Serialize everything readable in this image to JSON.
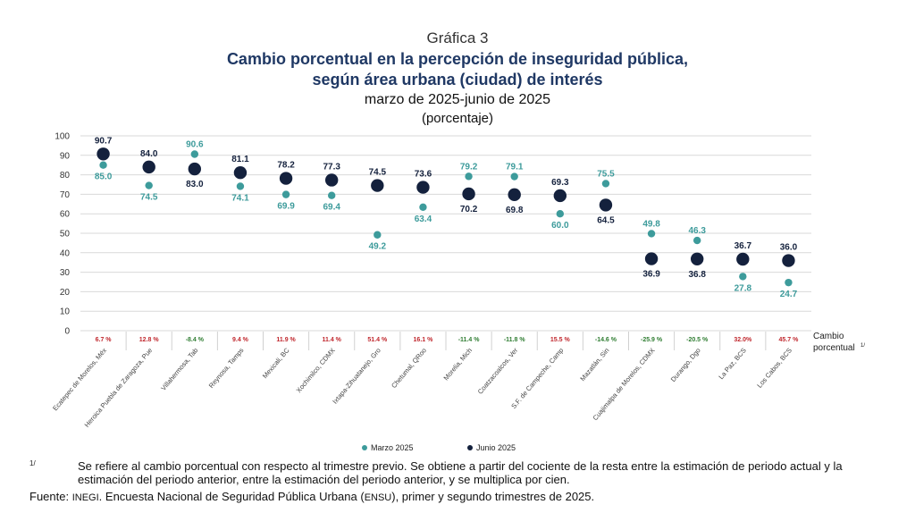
{
  "header": {
    "label": "Gráfica 3",
    "title_line1": "Cambio porcentual en la percepción de inseguridad pública,",
    "title_line2": "según área urbana (ciudad) de interés",
    "subtitle": "marzo de 2025-junio de 2025",
    "unit": "(porcentaje)"
  },
  "chart_data": {
    "type": "scatter",
    "ylim": [
      0,
      100
    ],
    "yticks": [
      0,
      10,
      20,
      30,
      40,
      50,
      60,
      70,
      80,
      90,
      100
    ],
    "categories": [
      "Ecatepec de Morelos, Méx",
      "Heroica Puebla de Zaragoza, Pue",
      "Villahermosa, Tab",
      "Reynosa, Tamps",
      "Mexicali, BC",
      "Xochimilco, CDMX",
      "Ixtapa-Zihuatanejo, Gro",
      "Chetumal, QRoo",
      "Morelia, Mich",
      "Coatzacoalcos, Ver",
      "S.F. de Campeche, Camp",
      "Mazatlán, Sin",
      "Cuajimalpa de Morelos, CDMX",
      "Durango, Dgo",
      "La Paz, BCS",
      "Los Cabos, BCS"
    ],
    "series": [
      {
        "name": "Marzo 2025",
        "color": "#3d9b9b",
        "values": [
          85.0,
          74.5,
          90.6,
          74.1,
          69.9,
          69.4,
          49.2,
          63.4,
          79.2,
          79.1,
          60.0,
          75.5,
          49.8,
          46.3,
          27.8,
          24.7
        ]
      },
      {
        "name": "Junio 2025",
        "color": "#14213d",
        "values": [
          90.7,
          84.0,
          83.0,
          81.1,
          78.2,
          77.3,
          74.5,
          73.6,
          70.2,
          69.8,
          69.3,
          64.5,
          36.9,
          36.8,
          36.7,
          36.0
        ]
      }
    ],
    "labels_march": [
      "85.0",
      "74.5",
      "90.6",
      "74.1",
      "69.9",
      "69.4",
      "49.2",
      "63.4",
      "79.2",
      "79.1",
      "60.0",
      "75.5",
      "49.8",
      "46.3",
      "27.8",
      "24.7"
    ],
    "labels_june": [
      "90.7",
      "84.0",
      "83.0",
      "81.1",
      "78.2",
      "77.3",
      "74.5",
      "73.6",
      "70.2",
      "69.8",
      "69.3",
      "64.5",
      "36.9",
      "36.8",
      "36.7",
      "36.0"
    ],
    "changes": [
      "6.7 %",
      "12.8 %",
      "-8.4 %",
      "9.4 %",
      "11.9 %",
      "11.4 %",
      "51.4 %",
      "16.1 %",
      "-11.4 %",
      "-11.8 %",
      "15.5 %",
      "-14.6 %",
      "-25.9 %",
      "-20.5 %",
      "32.0%",
      "45.7 %"
    ],
    "change_colors": [
      "#c0272d",
      "#c0272d",
      "#2f7d32",
      "#c0272d",
      "#c0272d",
      "#c0272d",
      "#c0272d",
      "#c0272d",
      "#2f7d32",
      "#2f7d32",
      "#c0272d",
      "#2f7d32",
      "#2f7d32",
      "#2f7d32",
      "#c0272d",
      "#c0272d"
    ],
    "change_label_line1": "Cambio",
    "change_label_line2": "porcentual",
    "change_label_sup": "1/"
  },
  "footnote": {
    "mark": "1/",
    "text": "Se refiere al cambio porcentual con respecto al trimestre previo. Se obtiene a partir del cociente de la resta entre la estimación de periodo actual y la estimación del periodo anterior, entre la estimación del periodo anterior, y se multiplica por cien."
  },
  "source": {
    "label": "Fuente:",
    "org": "INEGI",
    "text": ". Encuesta Nacional de Seguridad Pública Urbana (",
    "acronym": "ENSU",
    "text_end": "), primer y segundo trimestres de 2025."
  }
}
